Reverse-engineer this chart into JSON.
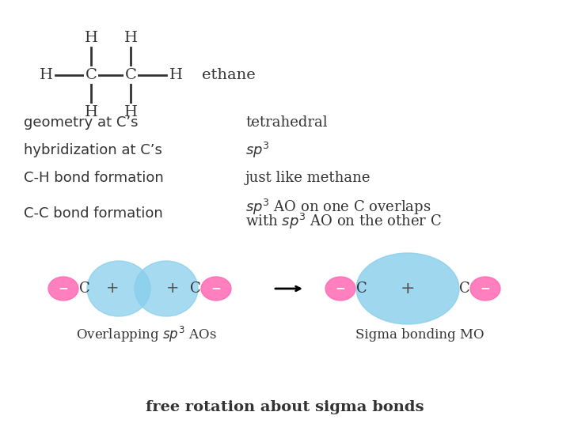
{
  "bg_color": "#ffffff",
  "text_color": "#000000",
  "pink_color": "#FF69B4",
  "blue_color": "#87CEEB",
  "label_rows": [
    {
      "left": "geometry at C’s",
      "right": "tetrahedral"
    },
    {
      "left": "hybridization at C’s",
      "right": "sp3_italic"
    },
    {
      "left": "C-H bond formation",
      "right": "just like methane"
    },
    {
      "left": "C-C bond formation",
      "right": "sp3_AO_overlap"
    }
  ],
  "bottom_label_left": "Overlapping sp3 AOs",
  "bottom_label_right": "Sigma bonding MO",
  "footer": "free rotation about sigma bonds",
  "ethane_label": "ethane"
}
